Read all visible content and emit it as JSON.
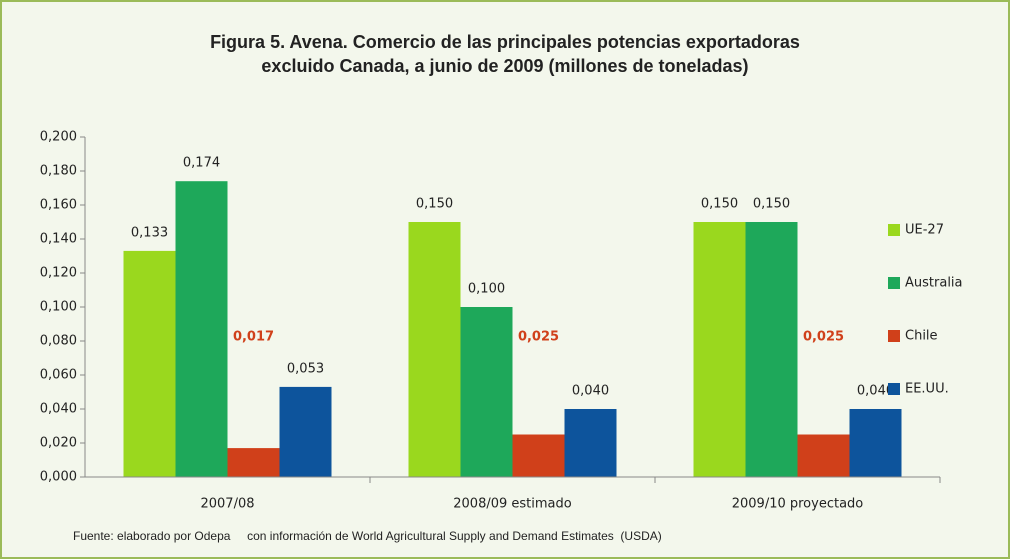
{
  "chart_data": {
    "type": "bar",
    "title": [
      "Figura 5.  Avena. Comercio de las principales potencias exportadoras",
      "excluido Canada, a junio de 2009 (millones de toneladas)"
    ],
    "categories": [
      "2007/08",
      "2008/09 estimado",
      "2009/10 proyectado"
    ],
    "series": [
      {
        "name": "UE-27",
        "color": "#9ad81e",
        "values": [
          0.133,
          0.15,
          0.15
        ],
        "value_labels": [
          "0,133",
          "0,150",
          "0,150"
        ]
      },
      {
        "name": "Australia",
        "color": "#1ea85a",
        "values": [
          0.174,
          0.1,
          0.15
        ],
        "value_labels": [
          "0,174",
          "0,100",
          "0,150"
        ]
      },
      {
        "name": "Chile",
        "color": "#d0401a",
        "values": [
          0.017,
          0.025,
          0.025
        ],
        "value_labels": [
          "0,017",
          "0,025",
          "0,025"
        ]
      },
      {
        "name": "EE.UU.",
        "color": "#0d549c",
        "values": [
          0.053,
          0.04,
          0.04
        ],
        "value_labels": [
          "0,053",
          "0,040",
          "0,040"
        ]
      }
    ],
    "ylim": [
      0,
      0.2
    ],
    "yticks": [
      {
        "value": 0,
        "label": "0,000"
      },
      {
        "value": 0.02,
        "label": "0,020"
      },
      {
        "value": 0.04,
        "label": "0,040"
      },
      {
        "value": 0.06,
        "label": "0,060"
      },
      {
        "value": 0.08,
        "label": "0,080"
      },
      {
        "value": 0.1,
        "label": "0,100"
      },
      {
        "value": 0.12,
        "label": "0,120"
      },
      {
        "value": 0.14,
        "label": "0,140"
      },
      {
        "value": 0.16,
        "label": "0,160"
      },
      {
        "value": 0.18,
        "label": "0,180"
      },
      {
        "value": 0.2,
        "label": "0,200"
      }
    ],
    "legend": "right",
    "source": "Fuente: elaborado por Odepa     con información de World Agricultural Supply and Demand Estimates  (USDA)"
  }
}
